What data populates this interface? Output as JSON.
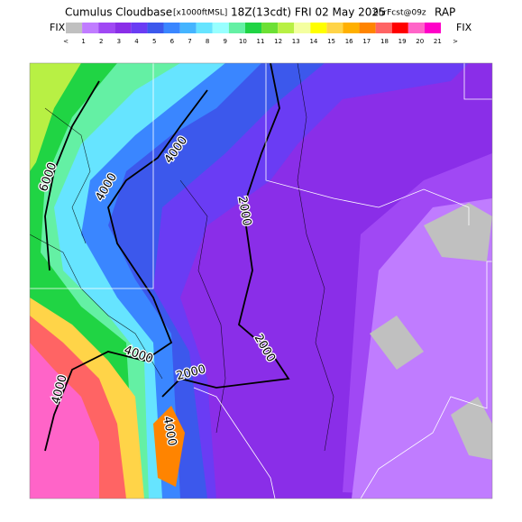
{
  "header": {
    "title": "Cumulus Cloudbase",
    "units": "[x1000ftMSL]",
    "time": "18Z(13cdt) FRI 02 May 2025",
    "forecast": "9hrFcst@09z",
    "model": "RAP"
  },
  "legend": {
    "left_label": "FIX",
    "right_label": "FIX",
    "colors": [
      "#c0c0c0",
      "#c07cff",
      "#a048f4",
      "#8a2ee8",
      "#6a3cf4",
      "#3c58ec",
      "#3a86ff",
      "#44b4ff",
      "#66e4ff",
      "#98ffff",
      "#64f0a4",
      "#20d444",
      "#6ce034",
      "#b8f044",
      "#f4ffa0",
      "#ffff00",
      "#ffd448",
      "#ffb000",
      "#ff8400",
      "#ff6464",
      "#ff0000",
      "#ff64c8",
      "#ff00c8"
    ],
    "labels": [
      "<",
      "1",
      "2",
      "3",
      "4",
      "5",
      "6",
      "7",
      "8",
      "9",
      "10",
      "11",
      "12",
      "13",
      "14",
      "15",
      "16",
      "17",
      "18",
      "19",
      "20",
      "21",
      ">"
    ]
  },
  "map": {
    "contour_labels": [
      "6000",
      "4000",
      "4000",
      "2000",
      "2000",
      "4000",
      "2000",
      "4000",
      "4000"
    ]
  }
}
